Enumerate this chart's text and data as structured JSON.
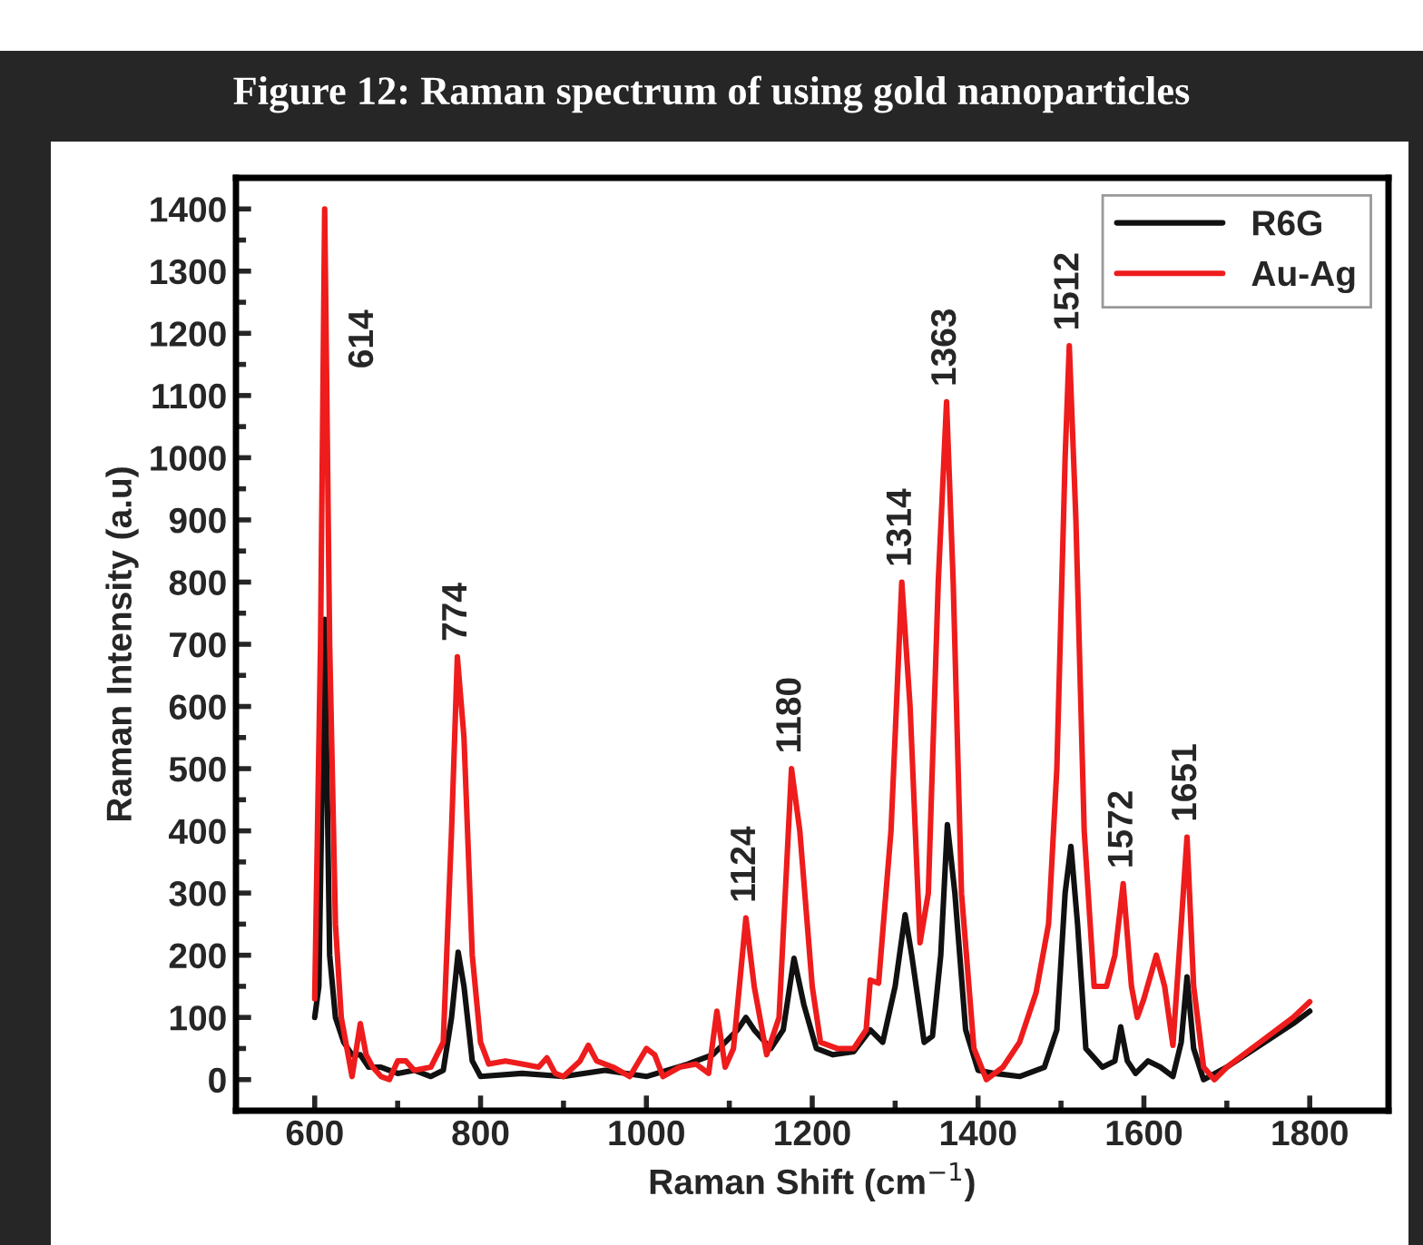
{
  "chart_data": {
    "type": "line",
    "title": "Figure 12: Raman spectrum of using gold nanoparticles",
    "xlabel": "Raman Shift (cm$^{−1}$)",
    "ylabel": "Raman Intensity (a.u)",
    "xlim": [
      505,
      1895
    ],
    "ylim": [
      -50,
      1450
    ],
    "xticks": [
      600,
      800,
      1000,
      1200,
      1400,
      1600,
      1800
    ],
    "yticks": [
      0,
      100,
      200,
      300,
      400,
      500,
      600,
      700,
      800,
      900,
      1000,
      1100,
      1200,
      1300,
      1400
    ],
    "legend": "top right",
    "grid": false,
    "marker": "none",
    "line_style": "solid",
    "annotations": [
      {
        "text": "614",
        "x": 612,
        "y": 1400
      },
      {
        "text": "774",
        "x": 772,
        "y": 680
      },
      {
        "text": "1124",
        "x": 1120,
        "y": 260
      },
      {
        "text": "1180",
        "x": 1175,
        "y": 500
      },
      {
        "text": "1314",
        "x": 1308,
        "y": 800
      },
      {
        "text": "1363",
        "x": 1362,
        "y": 1090
      },
      {
        "text": "1512",
        "x": 1510,
        "y": 1180
      },
      {
        "text": "1572",
        "x": 1575,
        "y": 315
      },
      {
        "text": "1651",
        "x": 1652,
        "y": 390
      }
    ],
    "series": [
      {
        "name": "R6G",
        "color": "#111111",
        "x": [
          600,
          605,
          612,
          618,
          625,
          635,
          645,
          655,
          665,
          680,
          700,
          720,
          740,
          755,
          765,
          773,
          780,
          790,
          800,
          850,
          900,
          950,
          1000,
          1050,
          1080,
          1095,
          1110,
          1120,
          1130,
          1150,
          1165,
          1178,
          1190,
          1205,
          1225,
          1250,
          1270,
          1285,
          1300,
          1312,
          1320,
          1335,
          1345,
          1355,
          1363,
          1372,
          1385,
          1400,
          1420,
          1450,
          1480,
          1495,
          1505,
          1512,
          1520,
          1530,
          1550,
          1565,
          1572,
          1580,
          1590,
          1605,
          1620,
          1635,
          1645,
          1652,
          1660,
          1672,
          1700,
          1740,
          1780,
          1800
        ],
        "values": [
          100,
          150,
          740,
          200,
          100,
          60,
          40,
          40,
          20,
          20,
          10,
          15,
          5,
          15,
          100,
          205,
          150,
          30,
          5,
          10,
          5,
          15,
          5,
          25,
          40,
          60,
          80,
          100,
          80,
          50,
          80,
          195,
          120,
          50,
          40,
          45,
          80,
          60,
          150,
          265,
          200,
          60,
          70,
          200,
          410,
          300,
          80,
          15,
          10,
          5,
          20,
          80,
          300,
          375,
          250,
          50,
          20,
          30,
          85,
          30,
          10,
          30,
          20,
          5,
          60,
          165,
          50,
          0,
          20,
          55,
          90,
          110
        ]
      },
      {
        "name": "Au-Ag",
        "color": "#ee1c1c",
        "x": [
          600,
          607,
          612,
          618,
          625,
          632,
          645,
          655,
          662,
          670,
          680,
          690,
          700,
          710,
          720,
          740,
          755,
          765,
          772,
          780,
          790,
          800,
          810,
          830,
          850,
          870,
          880,
          890,
          900,
          920,
          930,
          940,
          960,
          980,
          1000,
          1010,
          1020,
          1040,
          1060,
          1075,
          1085,
          1095,
          1105,
          1120,
          1130,
          1145,
          1160,
          1175,
          1185,
          1200,
          1210,
          1230,
          1250,
          1265,
          1270,
          1280,
          1295,
          1308,
          1318,
          1330,
          1340,
          1352,
          1362,
          1370,
          1380,
          1395,
          1410,
          1430,
          1450,
          1470,
          1485,
          1495,
          1505,
          1510,
          1518,
          1528,
          1540,
          1555,
          1565,
          1575,
          1585,
          1592,
          1600,
          1615,
          1625,
          1635,
          1645,
          1652,
          1660,
          1672,
          1685,
          1700,
          1740,
          1780,
          1800
        ],
        "values": [
          130,
          700,
          1400,
          700,
          250,
          100,
          5,
          90,
          40,
          20,
          5,
          0,
          30,
          30,
          15,
          20,
          60,
          400,
          680,
          550,
          200,
          60,
          25,
          30,
          25,
          20,
          35,
          10,
          5,
          30,
          55,
          30,
          20,
          5,
          50,
          40,
          5,
          20,
          25,
          10,
          110,
          20,
          50,
          260,
          150,
          40,
          100,
          500,
          400,
          150,
          60,
          50,
          50,
          80,
          160,
          155,
          400,
          800,
          600,
          220,
          300,
          800,
          1090,
          800,
          300,
          50,
          0,
          20,
          60,
          140,
          250,
          500,
          1000,
          1180,
          900,
          400,
          150,
          150,
          200,
          315,
          150,
          100,
          130,
          200,
          150,
          55,
          250,
          390,
          150,
          20,
          0,
          20,
          60,
          100,
          125
        ]
      }
    ]
  }
}
